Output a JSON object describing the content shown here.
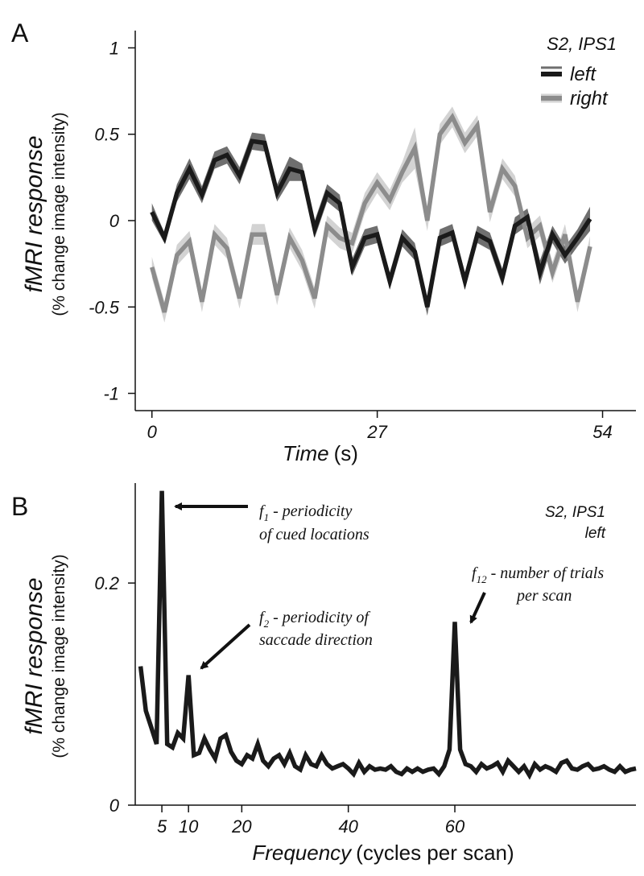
{
  "chart_data": [
    {
      "panel": "A",
      "type": "line",
      "title": "S2, IPS1",
      "xlabel": "Time",
      "xlabel_unit": "(s)",
      "ylabel": "fMRI response",
      "ylabel_sub": "(% change image intensity)",
      "xlim": [
        -2,
        58
      ],
      "ylim": [
        -1.1,
        1.1
      ],
      "xticks": [
        0,
        27,
        54
      ],
      "xtick_labels": [
        "0",
        "27",
        "54"
      ],
      "yticks": [
        1,
        0.5,
        0,
        -0.5,
        -1
      ],
      "ytick_labels": [
        "1",
        "0.5",
        "0",
        "-0.5",
        "-1"
      ],
      "legend_position": "top-right",
      "series": [
        {
          "name": "left",
          "color": "#1a1a1a",
          "band_color": "#6f6f6f",
          "x": [
            0,
            1.5,
            3,
            4.5,
            6,
            7.5,
            9,
            10.5,
            12,
            13.5,
            15,
            16.5,
            18,
            19.5,
            21,
            22.5,
            24,
            25.5,
            27,
            28.5,
            30,
            31.5,
            33,
            34.5,
            36,
            37.5,
            39,
            40.5,
            42,
            43.5,
            45,
            46.5,
            48,
            49.5,
            51,
            52.5
          ],
          "values": [
            0.05,
            -0.1,
            0.16,
            0.3,
            0.15,
            0.35,
            0.38,
            0.26,
            0.46,
            0.45,
            0.16,
            0.3,
            0.28,
            -0.05,
            0.16,
            0.1,
            -0.27,
            -0.1,
            -0.08,
            -0.35,
            -0.1,
            -0.18,
            -0.5,
            -0.1,
            -0.07,
            -0.35,
            -0.08,
            -0.12,
            -0.33,
            -0.03,
            0.02,
            -0.3,
            -0.08,
            -0.2,
            -0.1,
            0.01
          ],
          "band": [
            0.05,
            0.03,
            0.05,
            0.06,
            0.05,
            0.05,
            0.05,
            0.05,
            0.05,
            0.05,
            0.05,
            0.07,
            0.05,
            0.05,
            0.05,
            0.05,
            0.05,
            0.05,
            0.05,
            0.05,
            0.05,
            0.05,
            0.05,
            0.05,
            0.05,
            0.05,
            0.05,
            0.05,
            0.05,
            0.05,
            0.05,
            0.07,
            0.05,
            0.05,
            0.05,
            0.07
          ]
        },
        {
          "name": "right",
          "color": "#8c8c8c",
          "band_color": "#d3d3d3",
          "x": [
            0,
            1.5,
            3,
            4.5,
            6,
            7.5,
            9,
            10.5,
            12,
            13.5,
            15,
            16.5,
            18,
            19.5,
            21,
            22.5,
            24,
            25.5,
            27,
            28.5,
            30,
            31.5,
            33,
            34.5,
            36,
            37.5,
            39,
            40.5,
            42,
            43.5,
            45,
            46.5,
            48,
            49.5,
            51,
            52.5
          ],
          "values": [
            -0.27,
            -0.53,
            -0.2,
            -0.12,
            -0.47,
            -0.08,
            -0.16,
            -0.45,
            -0.08,
            -0.08,
            -0.43,
            -0.1,
            -0.23,
            -0.45,
            -0.03,
            -0.1,
            -0.13,
            0.1,
            0.22,
            0.12,
            0.28,
            0.42,
            0.0,
            0.5,
            0.6,
            0.45,
            0.55,
            0.05,
            0.3,
            0.2,
            -0.1,
            -0.03,
            -0.3,
            -0.08,
            -0.47,
            -0.15
          ],
          "band": [
            0.06,
            0.06,
            0.06,
            0.06,
            0.06,
            0.06,
            0.06,
            0.06,
            0.06,
            0.06,
            0.06,
            0.06,
            0.06,
            0.06,
            0.06,
            0.06,
            0.06,
            0.06,
            0.06,
            0.06,
            0.06,
            0.12,
            0.06,
            0.06,
            0.06,
            0.06,
            0.06,
            0.06,
            0.06,
            0.06,
            0.06,
            0.06,
            0.06,
            0.06,
            0.06,
            0.06
          ]
        }
      ]
    },
    {
      "panel": "B",
      "type": "line",
      "title_lines": [
        "S2, IPS1",
        "left"
      ],
      "xlabel": "Frequency",
      "xlabel_unit": "(cycles per scan)",
      "ylabel": "fMRI response",
      "ylabel_sub": "(% change image intensity)",
      "xlim": [
        0,
        94
      ],
      "ylim": [
        0,
        0.29
      ],
      "xticks": [
        5,
        10,
        20,
        40,
        60
      ],
      "xtick_labels": [
        "5",
        "10",
        "20",
        "40",
        "60"
      ],
      "yticks": [
        0.2,
        0
      ],
      "ytick_labels": [
        "0.2",
        "0"
      ],
      "series": [
        {
          "name": "left",
          "color": "#1a1a1a",
          "x": [
            1,
            2,
            3,
            4,
            5,
            6,
            7,
            8,
            9,
            10,
            11,
            12,
            13,
            14,
            15,
            16,
            17,
            18,
            19,
            20,
            21,
            22,
            23,
            24,
            25,
            26,
            27,
            28,
            29,
            30,
            31,
            32,
            33,
            34,
            35,
            36,
            37,
            38,
            39,
            40,
            41,
            42,
            43,
            44,
            45,
            46,
            47,
            48,
            49,
            50,
            51,
            52,
            53,
            54,
            55,
            56,
            57,
            58,
            59,
            60,
            61,
            62,
            63,
            64,
            65,
            66,
            67,
            68,
            69,
            70,
            71,
            72,
            73,
            74,
            75,
            76,
            77,
            78,
            79,
            80,
            81,
            82,
            83,
            84,
            85,
            86,
            87,
            88,
            89,
            90,
            91,
            92,
            93,
            94
          ],
          "values": [
            0.125,
            0.085,
            0.07,
            0.055,
            0.283,
            0.055,
            0.052,
            0.065,
            0.06,
            0.117,
            0.045,
            0.047,
            0.06,
            0.05,
            0.042,
            0.06,
            0.063,
            0.048,
            0.04,
            0.037,
            0.045,
            0.042,
            0.055,
            0.04,
            0.035,
            0.042,
            0.045,
            0.037,
            0.047,
            0.035,
            0.032,
            0.045,
            0.037,
            0.035,
            0.045,
            0.037,
            0.033,
            0.035,
            0.037,
            0.033,
            0.028,
            0.038,
            0.03,
            0.035,
            0.032,
            0.033,
            0.032,
            0.035,
            0.03,
            0.028,
            0.033,
            0.03,
            0.033,
            0.03,
            0.032,
            0.033,
            0.028,
            0.035,
            0.05,
            0.165,
            0.05,
            0.037,
            0.035,
            0.03,
            0.037,
            0.033,
            0.035,
            0.038,
            0.03,
            0.04,
            0.035,
            0.03,
            0.035,
            0.027,
            0.037,
            0.032,
            0.035,
            0.033,
            0.03,
            0.038,
            0.04,
            0.033,
            0.032,
            0.035,
            0.037,
            0.032,
            0.033,
            0.035,
            0.032,
            0.03,
            0.035,
            0.03,
            0.032,
            0.033
          ]
        }
      ],
      "annotations": [
        {
          "main": "f",
          "sub": "1",
          "rest": " - periodicity",
          "line2": "of cued locations",
          "target_x": 5,
          "target_y": 0.283
        },
        {
          "main": "f",
          "sub": "2",
          "rest": " - periodicity of",
          "line2": "saccade direction",
          "target_x": 10,
          "target_y": 0.117
        },
        {
          "main": "f",
          "sub": "12",
          "rest": " - number of trials",
          "line2": "per scan",
          "target_x": 60,
          "target_y": 0.165
        }
      ]
    }
  ]
}
